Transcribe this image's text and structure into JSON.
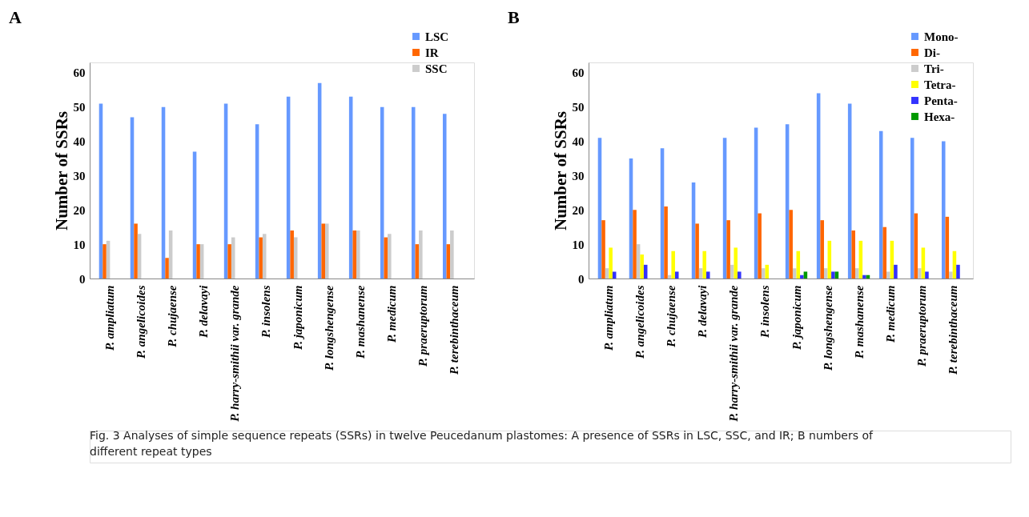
{
  "chart_data": [
    {
      "type": "bar",
      "title": "A",
      "ylabel": "Number of SSRs",
      "categories": [
        "P. ampliatum",
        "P. angelicoides",
        "P. chujaense",
        "P. delavayi",
        "P. harry-smithii var. grande",
        "P. insolens",
        "P. japonicum",
        "P. longshengense",
        "P. mashanense",
        "P. medicum",
        "P. praeruptorum",
        "P. terebinthaceum"
      ],
      "series": [
        {
          "name": "LSC",
          "color": "#6699ff",
          "values": [
            51,
            47,
            50,
            37,
            51,
            45,
            53,
            57,
            53,
            50,
            50,
            48
          ]
        },
        {
          "name": "IR",
          "color": "#ff6600",
          "values": [
            10,
            16,
            6,
            10,
            10,
            12,
            14,
            16,
            14,
            12,
            10,
            10
          ]
        },
        {
          "name": "SSC",
          "color": "#cccccc",
          "values": [
            11,
            13,
            14,
            10,
            12,
            13,
            12,
            16,
            14,
            13,
            14,
            14
          ]
        }
      ],
      "ylim": [
        0,
        63
      ],
      "yticks": [
        0,
        10,
        20,
        30,
        40,
        50,
        60
      ],
      "grid": false,
      "legend": "top right",
      "annotations": [
        "Fig. 3 Analyses of simple sequence repeats (SSRs) in twelve Peucedanum plastomes: A presence of SSRs in LSC, SSC, and IR; B numbers of different repeat types"
      ]
    },
    {
      "type": "bar",
      "title": "B",
      "ylabel": "Number of SSRs",
      "categories": [
        "P. ampliatum",
        "P. angelicoides",
        "P. chujaense",
        "P. delavayi",
        "P. harry-smithii var. grande",
        "P. insolens",
        "P. japonicum",
        "P. longshengense",
        "P. mashanense",
        "P. medicum",
        "P. praeruptorum",
        "P. terebinthaceum"
      ],
      "series": [
        {
          "name": "Mono-",
          "color": "#6699ff",
          "values": [
            41,
            35,
            38,
            28,
            41,
            44,
            45,
            54,
            51,
            43,
            41,
            40
          ]
        },
        {
          "name": "Di-",
          "color": "#ff6600",
          "values": [
            17,
            20,
            21,
            16,
            17,
            19,
            20,
            17,
            14,
            15,
            19,
            18
          ]
        },
        {
          "name": "Tri-",
          "color": "#cccccc",
          "values": [
            3,
            10,
            1,
            3,
            4,
            3,
            3,
            3,
            3,
            2,
            3,
            2
          ]
        },
        {
          "name": "Tetra-",
          "color": "#ffff00",
          "values": [
            9,
            7,
            8,
            8,
            9,
            4,
            8,
            11,
            11,
            11,
            9,
            8
          ]
        },
        {
          "name": "Penta-",
          "color": "#3333ff",
          "values": [
            2,
            4,
            2,
            2,
            2,
            0,
            1,
            2,
            1,
            4,
            2,
            4
          ]
        },
        {
          "name": "Hexa-",
          "color": "#009900",
          "values": [
            0,
            0,
            0,
            0,
            0,
            0,
            2,
            2,
            1,
            0,
            0,
            0
          ]
        }
      ],
      "ylim": [
        0,
        63
      ],
      "yticks": [
        0,
        10,
        20,
        30,
        40,
        50,
        60
      ],
      "grid": false,
      "legend": "top right"
    }
  ]
}
